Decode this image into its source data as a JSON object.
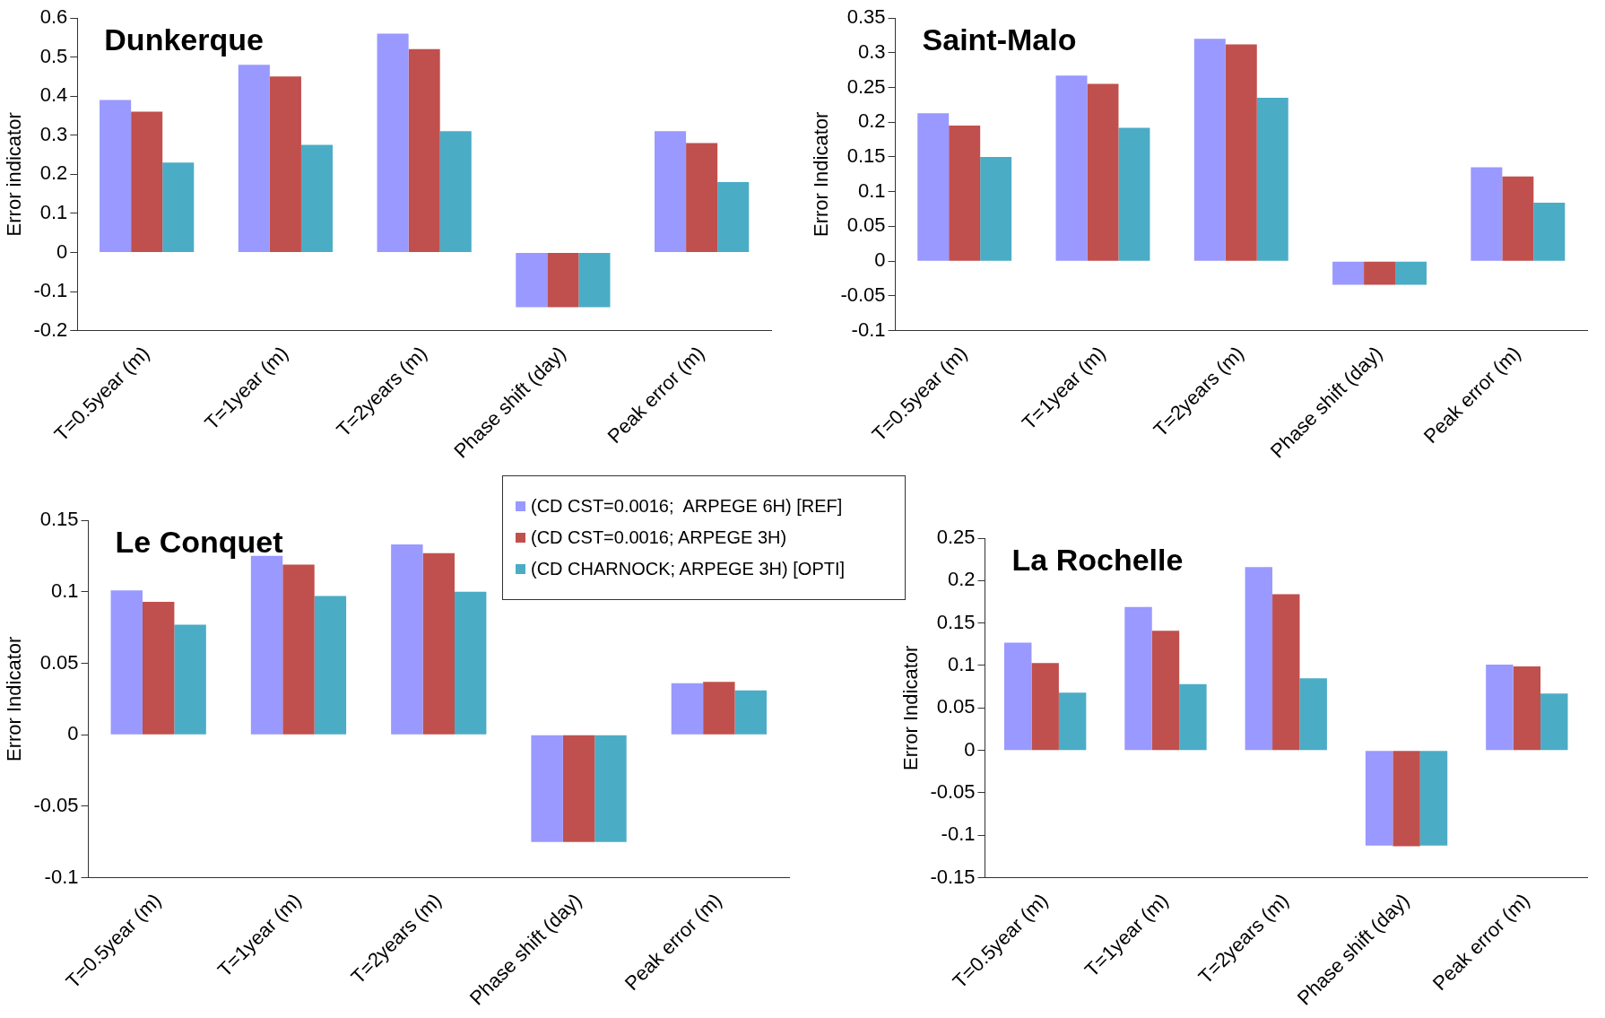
{
  "chart_data": [
    {
      "type": "bar",
      "title": "Dunkerque",
      "ylabel": "Error indicator",
      "categories": [
        "T=0.5year (m)",
        "T=1year (m)",
        "T=2years (m)",
        "Phase shift (day)",
        "Peak error (m)"
      ],
      "ylim": [
        -0.2,
        0.6
      ],
      "yticks": [
        -0.2,
        -0.1,
        0,
        0.1,
        0.2,
        0.3,
        0.4,
        0.5,
        0.6
      ],
      "grid": false,
      "legend": "bottom right",
      "series": [
        {
          "name": "(CD CST=0.0016;  ARPEGE 6H) [REF]",
          "color": "#9999ff",
          "values": [
            0.39,
            0.48,
            0.56,
            -0.14,
            0.31
          ]
        },
        {
          "name": "(CD CST=0.0016; ARPEGE 3H)",
          "color": "#c0504d",
          "values": [
            0.36,
            0.45,
            0.52,
            -0.14,
            0.28
          ]
        },
        {
          "name": "(CD CHARNOCK; ARPEGE 3H) [OPTI]",
          "color": "#4bacc6",
          "values": [
            0.23,
            0.275,
            0.31,
            -0.14,
            0.18
          ]
        }
      ]
    },
    {
      "type": "bar",
      "title": "Saint-Malo",
      "ylabel": "Error Indicator",
      "categories": [
        "T=0.5year (m)",
        "T=1year (m)",
        "T=2years (m)",
        "Phase shift (day)",
        "Peak error (m)"
      ],
      "ylim": [
        -0.1,
        0.35
      ],
      "yticks": [
        -0.1,
        -0.05,
        0,
        0.05,
        0.1,
        0.15,
        0.2,
        0.25,
        0.3,
        0.35
      ],
      "grid": false,
      "legend": false,
      "series": [
        {
          "color": "#9999ff",
          "values": [
            0.213,
            0.267,
            0.32,
            -0.034,
            0.135
          ]
        },
        {
          "color": "#c0504d",
          "values": [
            0.195,
            0.255,
            0.312,
            -0.034,
            0.122
          ]
        },
        {
          "color": "#4bacc6",
          "values": [
            0.15,
            0.192,
            0.235,
            -0.034,
            0.084
          ]
        }
      ]
    },
    {
      "type": "bar",
      "title": "Le Conquet",
      "ylabel": "Error Indicator",
      "categories": [
        "T=0.5year (m)",
        "T=1year (m)",
        "T=2years (m)",
        "Phase shift (day)",
        "Peak error (m)"
      ],
      "ylim": [
        -0.1,
        0.15
      ],
      "yticks": [
        -0.1,
        -0.05,
        0,
        0.05,
        0.1,
        0.15
      ],
      "grid": false,
      "legend": false,
      "series": [
        {
          "color": "#9999ff",
          "values": [
            0.101,
            0.125,
            0.133,
            -0.075,
            0.036
          ]
        },
        {
          "color": "#c0504d",
          "values": [
            0.093,
            0.119,
            0.127,
            -0.075,
            0.037
          ]
        },
        {
          "color": "#4bacc6",
          "values": [
            0.077,
            0.097,
            0.1,
            -0.075,
            0.031
          ]
        }
      ]
    },
    {
      "type": "bar",
      "title": "La Rochelle",
      "ylabel": "Error Indicator",
      "categories": [
        "T=0.5year (m)",
        "T=1year (m)",
        "T=2years (m)",
        "Phase shift (day)",
        "Peak error (m)"
      ],
      "ylim": [
        -0.15,
        0.25
      ],
      "yticks": [
        -0.15,
        -0.1,
        -0.05,
        0,
        0.05,
        0.1,
        0.15,
        0.2,
        0.25
      ],
      "grid": false,
      "legend": false,
      "series": [
        {
          "color": "#9999ff",
          "values": [
            0.127,
            0.169,
            0.216,
            -0.112,
            0.101
          ]
        },
        {
          "color": "#c0504d",
          "values": [
            0.103,
            0.141,
            0.184,
            -0.113,
            0.099
          ]
        },
        {
          "color": "#4bacc6",
          "values": [
            0.068,
            0.078,
            0.085,
            -0.112,
            0.067
          ]
        }
      ]
    }
  ]
}
